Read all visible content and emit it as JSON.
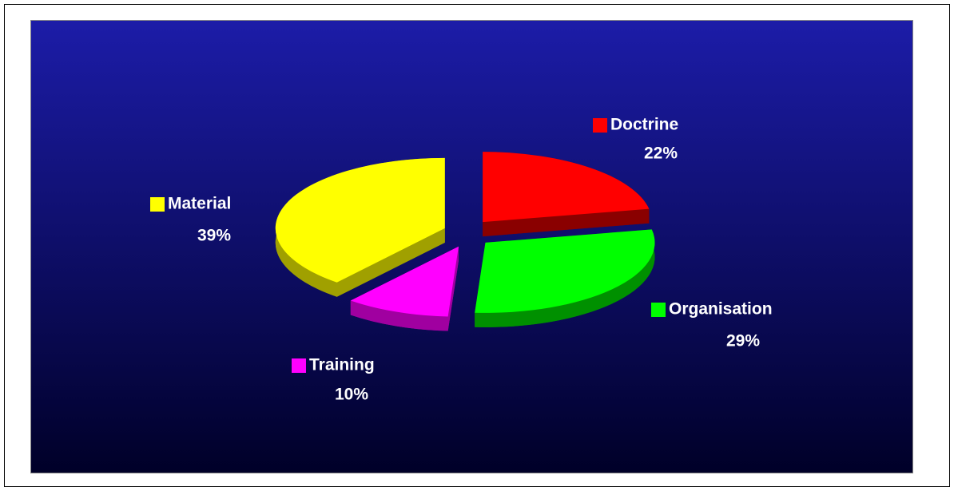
{
  "chart_data": {
    "type": "pie",
    "categories": [
      "Doctrine",
      "Organisation",
      "Training",
      "Material"
    ],
    "values": [
      22,
      29,
      10,
      39
    ],
    "value_labels": [
      "22%",
      "29%",
      "10%",
      "39%"
    ],
    "colors": [
      "#ff0000",
      "#00ff00",
      "#ff00ff",
      "#ffff00"
    ],
    "side_colors": [
      "#8a0000",
      "#009000",
      "#a000a0",
      "#a0a000"
    ]
  }
}
